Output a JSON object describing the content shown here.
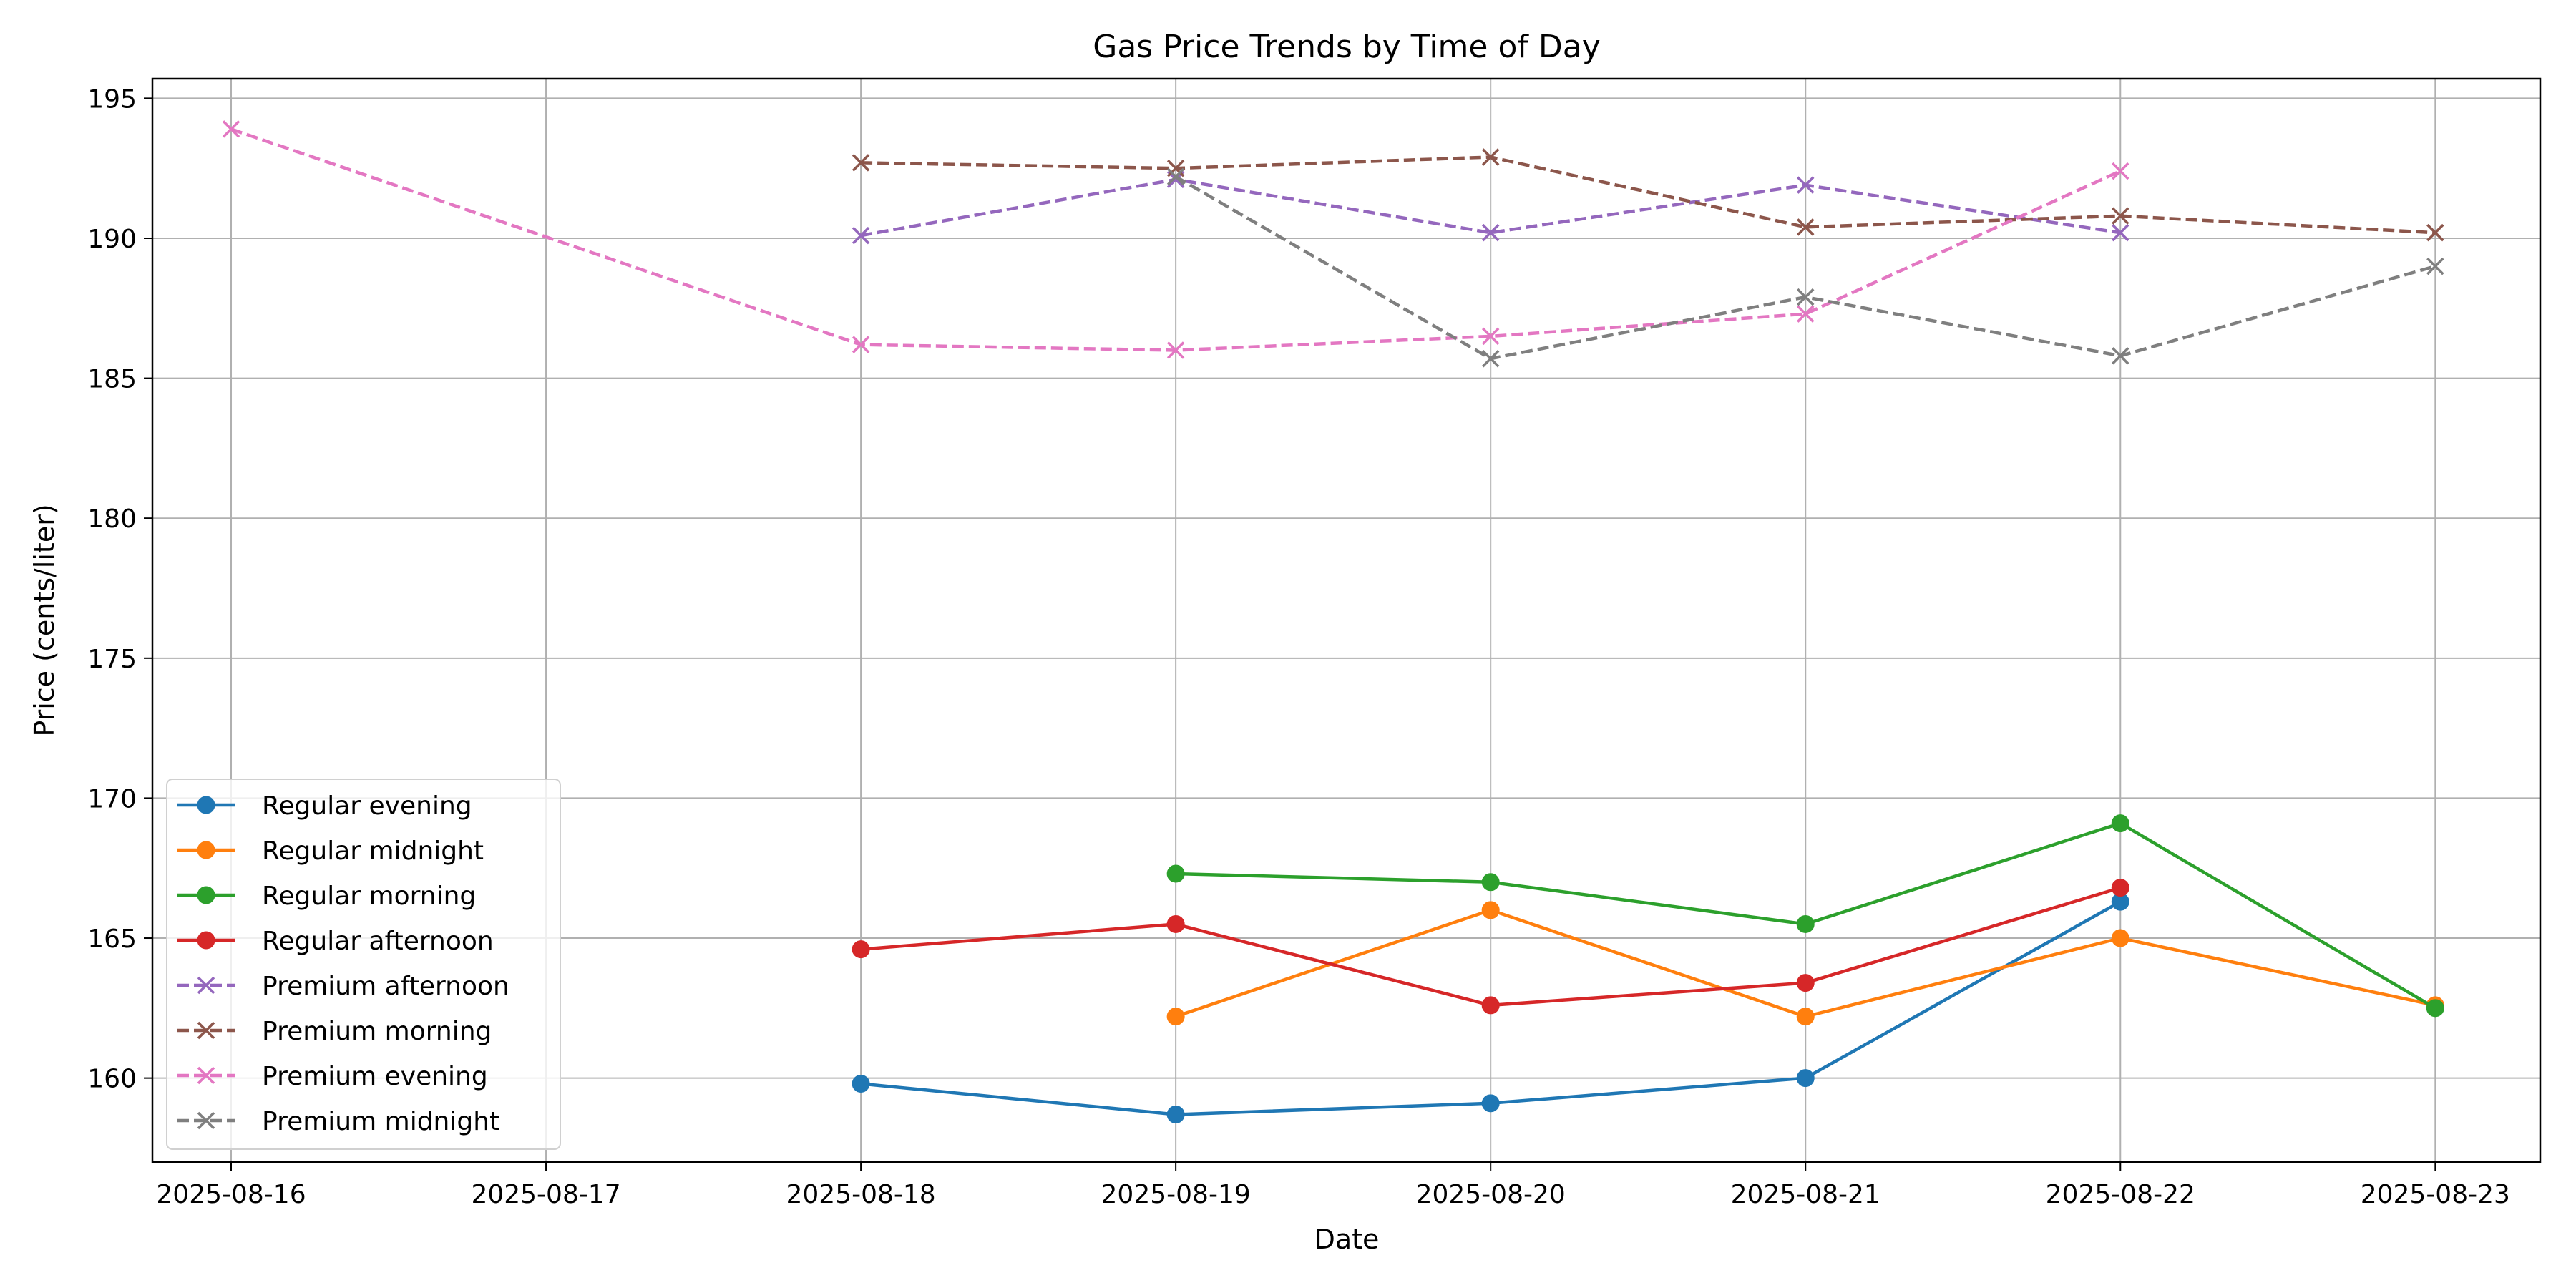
{
  "chart_data": {
    "type": "line",
    "title": "Gas Price Trends by Time of Day",
    "xlabel": "Date",
    "ylabel": "Price (cents/liter)",
    "x_type": "date",
    "xlim": [
      "2025-08-15T18:00",
      "2025-08-23T08:00"
    ],
    "ylim": [
      157,
      195.7
    ],
    "x_ticks": [
      "2025-08-16",
      "2025-08-17",
      "2025-08-18",
      "2025-08-19",
      "2025-08-20",
      "2025-08-21",
      "2025-08-22",
      "2025-08-23"
    ],
    "y_ticks": [
      160,
      165,
      170,
      175,
      180,
      185,
      190,
      195
    ],
    "grid": true,
    "legend_position": "lower-left",
    "series": [
      {
        "name": "Regular evening",
        "color": "#1f77b4",
        "linestyle": "solid",
        "marker": "circle",
        "points": [
          [
            "2025-08-18",
            159.8
          ],
          [
            "2025-08-19",
            158.7
          ],
          [
            "2025-08-20",
            159.1
          ],
          [
            "2025-08-21",
            160.0
          ],
          [
            "2025-08-22",
            166.3
          ]
        ]
      },
      {
        "name": "Regular midnight",
        "color": "#ff7f0e",
        "linestyle": "solid",
        "marker": "circle",
        "points": [
          [
            "2025-08-19",
            162.2
          ],
          [
            "2025-08-20",
            166.0
          ],
          [
            "2025-08-21",
            162.2
          ],
          [
            "2025-08-22",
            165.0
          ],
          [
            "2025-08-23",
            162.6
          ]
        ]
      },
      {
        "name": "Regular morning",
        "color": "#2ca02c",
        "linestyle": "solid",
        "marker": "circle",
        "points": [
          [
            "2025-08-19",
            167.3
          ],
          [
            "2025-08-20",
            167.0
          ],
          [
            "2025-08-21",
            165.5
          ],
          [
            "2025-08-22",
            169.1
          ],
          [
            "2025-08-23",
            162.5
          ]
        ]
      },
      {
        "name": "Regular afternoon",
        "color": "#d62728",
        "linestyle": "solid",
        "marker": "circle",
        "points": [
          [
            "2025-08-18",
            164.6
          ],
          [
            "2025-08-19",
            165.5
          ],
          [
            "2025-08-20",
            162.6
          ],
          [
            "2025-08-21",
            163.4
          ],
          [
            "2025-08-22",
            166.8
          ]
        ]
      },
      {
        "name": "Premium afternoon",
        "color": "#9467bd",
        "linestyle": "dashed",
        "marker": "x",
        "points": [
          [
            "2025-08-18",
            190.1
          ],
          [
            "2025-08-19",
            192.1
          ],
          [
            "2025-08-20",
            190.2
          ],
          [
            "2025-08-21",
            191.9
          ],
          [
            "2025-08-22",
            190.2
          ]
        ]
      },
      {
        "name": "Premium morning",
        "color": "#8c564b",
        "linestyle": "dashed",
        "marker": "x",
        "points": [
          [
            "2025-08-18",
            192.7
          ],
          [
            "2025-08-19",
            192.5
          ],
          [
            "2025-08-20",
            192.9
          ],
          [
            "2025-08-21",
            190.4
          ],
          [
            "2025-08-22",
            190.8
          ],
          [
            "2025-08-23",
            190.2
          ]
        ]
      },
      {
        "name": "Premium evening",
        "color": "#e377c2",
        "linestyle": "dashed",
        "marker": "x",
        "points": [
          [
            "2025-08-16",
            193.9
          ],
          [
            "2025-08-18",
            186.2
          ],
          [
            "2025-08-19",
            186.0
          ],
          [
            "2025-08-20",
            186.5
          ],
          [
            "2025-08-21",
            187.3
          ],
          [
            "2025-08-22",
            192.4
          ]
        ]
      },
      {
        "name": "Premium midnight",
        "color": "#7f7f7f",
        "linestyle": "dashed",
        "marker": "x",
        "points": [
          [
            "2025-08-19",
            192.2
          ],
          [
            "2025-08-20",
            185.7
          ],
          [
            "2025-08-21",
            187.9
          ],
          [
            "2025-08-22",
            185.8
          ],
          [
            "2025-08-23",
            189.0
          ]
        ]
      }
    ]
  }
}
